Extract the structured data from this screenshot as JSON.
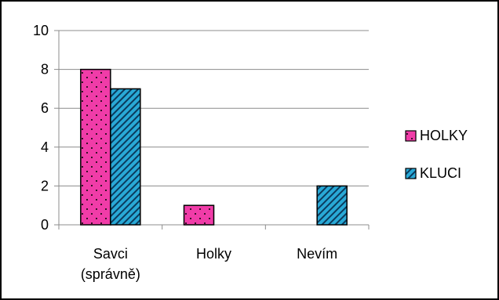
{
  "chart_data": {
    "type": "bar",
    "categories": [
      [
        "Savci",
        "(správně)"
      ],
      [
        "Holky"
      ],
      [
        "Nevím"
      ]
    ],
    "series": [
      {
        "name": "HOLKY",
        "values": [
          8,
          1,
          0
        ],
        "color": "#F03CA8",
        "pattern": "dots"
      },
      {
        "name": "KLUCI",
        "values": [
          7,
          0,
          2
        ],
        "color": "#29A9D6",
        "pattern": "diagonal-stripes"
      }
    ],
    "yticks": [
      "0",
      "2",
      "4",
      "6",
      "8",
      "10"
    ],
    "ylim": [
      0,
      10
    ],
    "grid": true,
    "legend_position": "right"
  }
}
